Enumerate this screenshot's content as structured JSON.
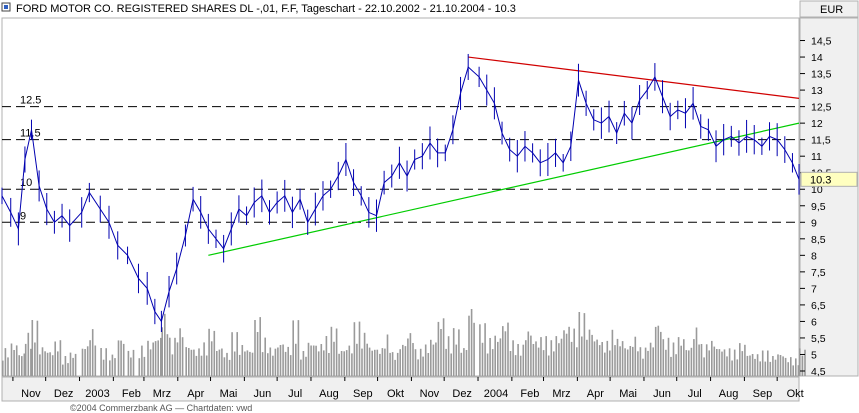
{
  "header": {
    "title": "FORD MOTOR CO. REGISTERED SHARES DL -,01, F.F, Tageschart - 22.10.2002 - 21.10.2004 - 10.3",
    "icon": "chart-window-icon"
  },
  "currency_label": "EUR",
  "last_price_label": "10.3",
  "colors": {
    "price": "#0000b0",
    "volume": "#9a9a9a",
    "resistance": "#d00000",
    "support": "#00cc00",
    "last_price_bg": "#ffffc0",
    "axis_bg": "#f0f0f0"
  },
  "chart_data": {
    "type": "line",
    "title": "FORD MOTOR CO. REGISTERED SHARES DL -,01, F.F, Tageschart - 22.10.2002 - 21.10.2004 - 10.3",
    "x_range": [
      "2002-10-22",
      "2004-10-21"
    ],
    "y_range": [
      4.5,
      15
    ],
    "y_ticks": [
      "4,5",
      "5",
      "5,5",
      "6",
      "6,5",
      "7",
      "7,5",
      "8",
      "8,5",
      "9",
      "9,5",
      "10",
      "10,5",
      "11",
      "11,5",
      "12",
      "12,5",
      "13",
      "13,5",
      "14",
      "14,5"
    ],
    "x_labels": [
      "Nov",
      "Dez",
      "2003",
      "Feb",
      "Mrz",
      "Apr",
      "Mai",
      "Jun",
      "Jul",
      "Aug",
      "Sep",
      "Okt",
      "Nov",
      "Dez",
      "2004",
      "Feb",
      "Mrz",
      "Apr",
      "Mai",
      "Jun",
      "Jul",
      "Aug",
      "Sep",
      "Okt"
    ],
    "series": [
      {
        "dates": [
          "2002-10-22",
          "2002-10-30",
          "2002-11-06",
          "2002-11-12",
          "2002-11-18",
          "2002-11-25",
          "2002-12-02",
          "2002-12-09",
          "2002-12-16",
          "2002-12-23",
          "2003-01-03",
          "2003-01-10",
          "2003-01-20",
          "2003-01-28",
          "2003-02-05",
          "2003-02-14",
          "2003-02-24",
          "2003-03-04",
          "2003-03-11",
          "2003-03-17",
          "2003-03-24",
          "2003-03-31",
          "2003-04-08",
          "2003-04-15",
          "2003-04-22",
          "2003-04-29",
          "2003-05-06",
          "2003-05-13",
          "2003-05-20",
          "2003-05-27",
          "2003-06-03",
          "2003-06-10",
          "2003-06-17",
          "2003-06-24",
          "2003-07-01",
          "2003-07-08",
          "2003-07-15",
          "2003-07-22",
          "2003-07-29",
          "2003-08-05",
          "2003-08-12",
          "2003-08-19",
          "2003-08-26",
          "2003-09-02",
          "2003-09-09",
          "2003-09-16",
          "2003-09-23",
          "2003-09-30",
          "2003-10-07",
          "2003-10-14",
          "2003-10-21",
          "2003-10-28",
          "2003-11-04",
          "2003-11-11",
          "2003-11-18",
          "2003-11-25",
          "2003-12-02",
          "2003-12-09",
          "2003-12-16",
          "2003-12-23",
          "2004-01-02",
          "2004-01-09",
          "2004-01-16",
          "2004-01-23",
          "2004-01-30",
          "2004-02-06",
          "2004-02-13",
          "2004-02-20",
          "2004-02-27",
          "2004-03-05",
          "2004-03-12",
          "2004-03-19",
          "2004-03-26",
          "2004-04-02",
          "2004-04-09",
          "2004-04-16",
          "2004-04-23",
          "2004-04-30",
          "2004-05-07",
          "2004-05-14",
          "2004-05-21",
          "2004-05-28",
          "2004-06-04",
          "2004-06-11",
          "2004-06-18",
          "2004-06-25",
          "2004-07-02",
          "2004-07-09",
          "2004-07-16",
          "2004-07-23",
          "2004-07-30",
          "2004-08-06",
          "2004-08-13",
          "2004-08-20",
          "2004-08-27",
          "2004-09-03",
          "2004-09-10",
          "2004-09-17",
          "2004-09-24",
          "2004-10-01",
          "2004-10-08",
          "2004-10-15",
          "2004-10-21"
        ],
        "values": [
          9.8,
          9.3,
          8.8,
          10.9,
          11.8,
          10.1,
          9.4,
          9.0,
          9.2,
          8.9,
          9.3,
          9.9,
          9.4,
          9.0,
          8.3,
          8.0,
          7.3,
          7.0,
          6.3,
          6.0,
          6.9,
          7.6,
          8.6,
          9.7,
          9.3,
          8.8,
          8.5,
          8.2,
          8.8,
          9.4,
          9.2,
          9.6,
          9.8,
          9.3,
          9.6,
          9.8,
          9.3,
          9.7,
          9.0,
          9.4,
          9.8,
          10.0,
          10.4,
          10.9,
          10.2,
          9.8,
          9.3,
          9.2,
          10.2,
          10.4,
          10.8,
          10.4,
          10.9,
          11.0,
          11.4,
          11.1,
          11.1,
          11.8,
          12.9,
          13.7,
          13.4,
          13.0,
          12.6,
          11.7,
          11.2,
          11.0,
          11.3,
          11.1,
          10.8,
          10.9,
          11.1,
          10.8,
          11.3,
          13.3,
          12.6,
          12.1,
          12.0,
          12.2,
          11.7,
          12.3,
          12.0,
          12.7,
          13.0,
          13.4,
          12.8,
          12.2,
          12.4,
          12.3,
          12.6,
          11.9,
          11.8,
          11.3,
          11.5,
          11.6,
          11.4,
          11.6,
          11.5,
          11.3,
          11.6,
          11.5,
          11.2,
          10.8,
          10.3
        ]
      }
    ],
    "volume": [
      0.35,
      0.42,
      0.3,
      0.55,
      0.7,
      0.38,
      0.33,
      0.45,
      0.25,
      0.3,
      0.4,
      0.6,
      0.35,
      0.28,
      0.5,
      0.33,
      0.38,
      0.45,
      0.52,
      0.8,
      0.48,
      0.62,
      0.4,
      0.35,
      0.42,
      0.6,
      0.38,
      0.3,
      0.55,
      0.4,
      0.35,
      0.75,
      0.48,
      0.36,
      0.44,
      0.38,
      0.7,
      0.32,
      0.45,
      0.41,
      0.5,
      0.62,
      0.35,
      0.4,
      0.68,
      0.55,
      0.38,
      0.36,
      0.52,
      0.3,
      0.43,
      0.57,
      0.34,
      0.4,
      0.48,
      0.75,
      0.5,
      0.6,
      0.38,
      0.9,
      0.66,
      0.48,
      0.53,
      0.7,
      0.45,
      0.4,
      0.6,
      0.47,
      0.5,
      0.45,
      0.52,
      0.65,
      0.6,
      0.8,
      0.62,
      0.5,
      0.44,
      0.58,
      0.48,
      0.4,
      0.5,
      0.36,
      0.44,
      0.7,
      0.48,
      0.42,
      0.5,
      0.38,
      0.62,
      0.4,
      0.46,
      0.38,
      0.35,
      0.33,
      0.42,
      0.3,
      0.28,
      0.32,
      0.26,
      0.3,
      0.24,
      0.22,
      0.35
    ],
    "horizontal_levels": [
      {
        "value": 12.5,
        "label": "12.5"
      },
      {
        "value": 11.5,
        "label": "11.5"
      },
      {
        "value": 10,
        "label": "10"
      },
      {
        "value": 9,
        "label": "9"
      }
    ],
    "trendlines": [
      {
        "name": "resistance",
        "from": [
          "2003-12-23",
          14.0
        ],
        "to": [
          "2004-10-21",
          12.75
        ]
      },
      {
        "name": "support",
        "from": [
          "2003-04-29",
          8.0
        ],
        "to": [
          "2004-10-21",
          12.0
        ]
      }
    ],
    "grid": false,
    "legend": "none"
  },
  "footer": {
    "text": "©2004 Commerzbank AG — Chartdaten: vwd"
  }
}
